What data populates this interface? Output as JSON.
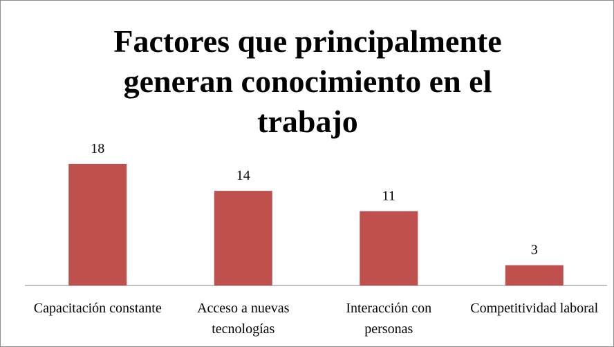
{
  "chart_data": {
    "type": "bar",
    "title": "Factores que principalmente generan conocimiento en el trabajo",
    "categories": [
      "Capacitación constante",
      "Acceso a nuevas tecnologías",
      "Interacción con personas",
      "Competitividad laboral"
    ],
    "values": [
      18,
      14,
      11,
      3
    ],
    "color": "#c0504d"
  }
}
